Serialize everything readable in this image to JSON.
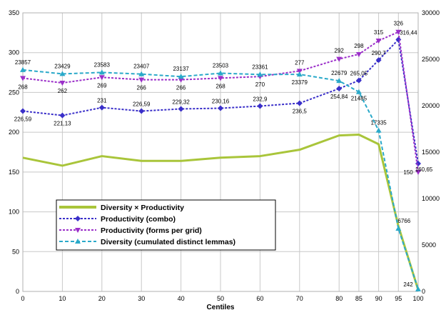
{
  "chart_data": {
    "type": "line",
    "title": "",
    "xlabel": "Centiles",
    "ylabel": "",
    "x": [
      0,
      10,
      20,
      30,
      40,
      50,
      60,
      70,
      80,
      85,
      90,
      95,
      100
    ],
    "x_tick_labels": [
      "0",
      "10",
      "20",
      "30",
      "40",
      "50",
      "60",
      "70",
      "80",
      "85",
      "90",
      "95",
      "100"
    ],
    "ylim_left": [
      0,
      350
    ],
    "y_left_ticks": [
      0,
      50,
      100,
      150,
      200,
      250,
      300,
      350
    ],
    "ylim_right": [
      0,
      30000
    ],
    "y_right_ticks": [
      0,
      5000,
      10000,
      15000,
      20000,
      25000,
      30000
    ],
    "grid": true,
    "legend_position": "lower-left",
    "series": [
      {
        "name": "Diversity × Productivity",
        "axis": "left",
        "style": "solid",
        "marker": "none",
        "color": "#a9c53a",
        "values": [
          168,
          158,
          170,
          164,
          164,
          168,
          170,
          178,
          196,
          197,
          185,
          82,
          2
        ],
        "labels": [
          "",
          "",
          "",
          "",
          "",
          "",
          "",
          "",
          "",
          "",
          "",
          "",
          ""
        ]
      },
      {
        "name": "Productivity (combo)",
        "axis": "left",
        "style": "dotted",
        "marker": "diamond",
        "color": "#3a2fc9",
        "values": [
          226.59,
          221.13,
          231,
          226.59,
          229.32,
          230.16,
          232.9,
          236.5,
          254.84,
          265.05,
          290.7,
          316.44,
          160.65
        ],
        "labels": [
          "226,59",
          "221,13",
          "231",
          "226,59",
          "229,32",
          "230,16",
          "232,9",
          "236,5",
          "254,84",
          "265,05",
          "290,7",
          "316,44",
          "160,65"
        ]
      },
      {
        "name": "Productivity (forms per grid)",
        "axis": "left",
        "style": "dotted",
        "marker": "triangle-down",
        "color": "#9b2fc9",
        "values": [
          268,
          262,
          269,
          266,
          266,
          268,
          270,
          277,
          292,
          298,
          315,
          326,
          150
        ],
        "labels": [
          "268",
          "262",
          "269",
          "266",
          "266",
          "268",
          "270",
          "277",
          "292",
          "298",
          "315",
          "326",
          "150"
        ]
      },
      {
        "name": "Diversity (cumulated distinct lemmas)",
        "axis": "right",
        "style": "dashed",
        "marker": "triangle-up",
        "color": "#2aa9c9",
        "values": [
          23857,
          23429,
          23583,
          23407,
          23137,
          23503,
          23361,
          23379,
          22679,
          21485,
          17335,
          6766,
          242
        ],
        "labels": [
          "23857",
          "23429",
          "23583",
          "23407",
          "23137",
          "23503",
          "23361",
          "23379",
          "22679",
          "21485",
          "17335",
          "6766",
          "242"
        ]
      }
    ]
  }
}
